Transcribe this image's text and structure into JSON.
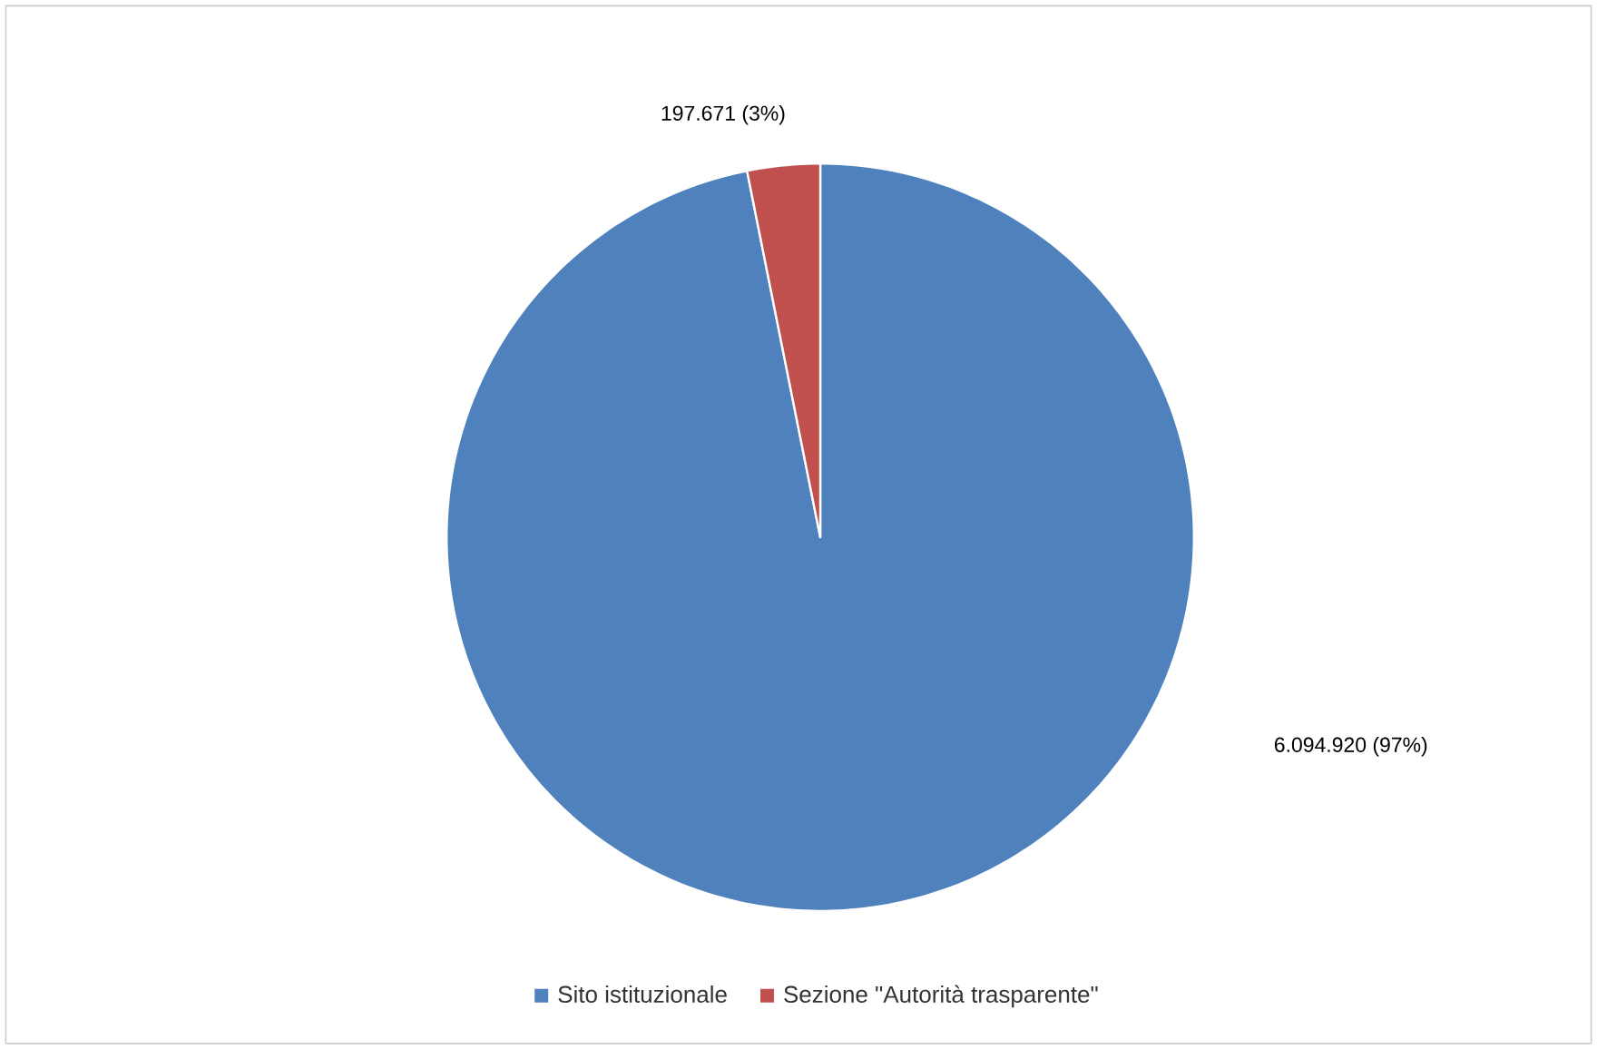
{
  "chart_data": {
    "type": "pie",
    "categories": [
      "Sito istituzionale",
      "Sezione \"Autorità trasparente\""
    ],
    "values": [
      6094920,
      197671
    ],
    "colors": [
      "#4f81bd",
      "#c0504d"
    ],
    "value_labels": [
      "6.094.920 (97%)",
      "197.671 (3%)"
    ],
    "legend": "bottom"
  }
}
